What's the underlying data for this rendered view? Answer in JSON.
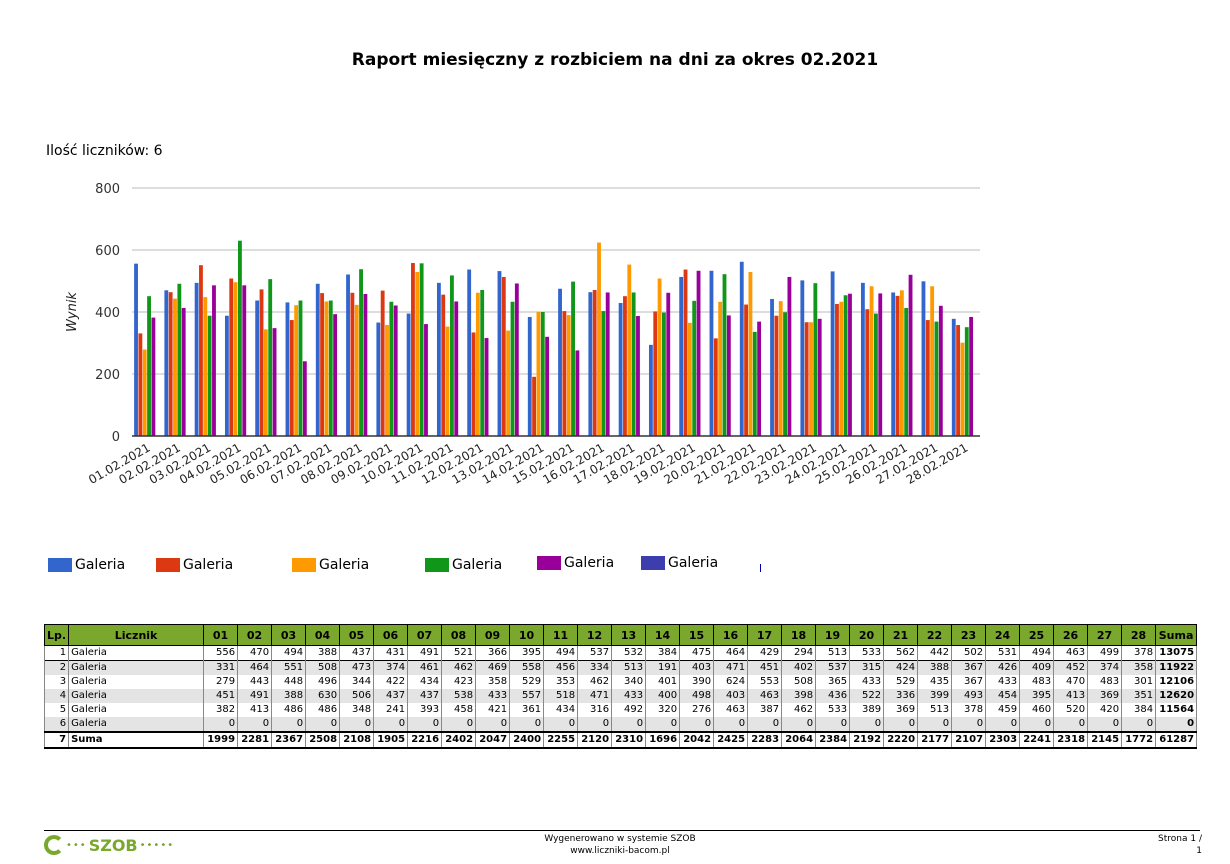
{
  "report": {
    "title": "Raport miesięczny z rozbiciem na dni za okres 02.2021",
    "counter_count": "Ilość liczników: 6"
  },
  "chart_data": {
    "type": "bar",
    "ylabel": "Wynik",
    "ylim": [
      0,
      800
    ],
    "yticks": [
      0,
      200,
      400,
      600,
      800
    ],
    "grid": true,
    "categories": [
      "01.02.2021",
      "02.02.2021",
      "03.02.2021",
      "04.02.2021",
      "05.02.2021",
      "06.02.2021",
      "07.02.2021",
      "08.02.2021",
      "09.02.2021",
      "10.02.2021",
      "11.02.2021",
      "12.02.2021",
      "13.02.2021",
      "14.02.2021",
      "15.02.2021",
      "16.02.2021",
      "17.02.2021",
      "18.02.2021",
      "19.02.2021",
      "20.02.2021",
      "21.02.2021",
      "22.02.2021",
      "23.02.2021",
      "24.02.2021",
      "25.02.2021",
      "26.02.2021",
      "27.02.2021",
      "28.02.2021"
    ],
    "series": [
      {
        "name": "Galeria",
        "color": "#3366cc",
        "values": [
          556,
          470,
          494,
          388,
          437,
          431,
          491,
          521,
          366,
          395,
          494,
          537,
          532,
          384,
          475,
          464,
          429,
          294,
          513,
          533,
          562,
          442,
          502,
          531,
          494,
          463,
          499,
          378
        ]
      },
      {
        "name": "Galeria",
        "color": "#dc3912",
        "values": [
          331,
          464,
          551,
          508,
          473,
          374,
          461,
          462,
          469,
          558,
          456,
          334,
          513,
          191,
          403,
          471,
          451,
          402,
          537,
          315,
          424,
          388,
          367,
          426,
          409,
          452,
          374,
          358
        ]
      },
      {
        "name": "Galeria",
        "color": "#ff9900",
        "values": [
          279,
          443,
          448,
          496,
          344,
          422,
          434,
          423,
          358,
          529,
          353,
          462,
          340,
          401,
          390,
          624,
          553,
          508,
          365,
          433,
          529,
          435,
          367,
          433,
          483,
          470,
          483,
          301
        ]
      },
      {
        "name": "Galeria",
        "color": "#109618",
        "values": [
          451,
          491,
          388,
          630,
          506,
          437,
          437,
          538,
          433,
          557,
          518,
          471,
          433,
          400,
          498,
          403,
          463,
          398,
          436,
          522,
          336,
          399,
          493,
          454,
          395,
          413,
          369,
          351
        ]
      },
      {
        "name": "Galeria",
        "color": "#990099",
        "values": [
          382,
          413,
          486,
          486,
          348,
          241,
          393,
          458,
          421,
          361,
          434,
          316,
          492,
          320,
          276,
          463,
          387,
          462,
          533,
          389,
          369,
          513,
          378,
          459,
          460,
          520,
          420,
          384
        ]
      },
      {
        "name": "Galeria",
        "color": "#3b3eac",
        "values": [
          0,
          0,
          0,
          0,
          0,
          0,
          0,
          0,
          0,
          0,
          0,
          0,
          0,
          0,
          0,
          0,
          0,
          0,
          0,
          0,
          0,
          0,
          0,
          0,
          0,
          0,
          0,
          0
        ]
      }
    ]
  },
  "table": {
    "headers": [
      "Lp.",
      "Licznik",
      "01",
      "02",
      "03",
      "04",
      "05",
      "06",
      "07",
      "08",
      "09",
      "10",
      "11",
      "12",
      "13",
      "14",
      "15",
      "16",
      "17",
      "18",
      "19",
      "20",
      "21",
      "22",
      "23",
      "24",
      "25",
      "26",
      "27",
      "28",
      "Suma"
    ],
    "rows": [
      [
        "1",
        "Galeria",
        "556",
        "470",
        "494",
        "388",
        "437",
        "431",
        "491",
        "521",
        "366",
        "395",
        "494",
        "537",
        "532",
        "384",
        "475",
        "464",
        "429",
        "294",
        "513",
        "533",
        "562",
        "442",
        "502",
        "531",
        "494",
        "463",
        "499",
        "378",
        "13075"
      ],
      [
        "2",
        "Galeria",
        "331",
        "464",
        "551",
        "508",
        "473",
        "374",
        "461",
        "462",
        "469",
        "558",
        "456",
        "334",
        "513",
        "191",
        "403",
        "471",
        "451",
        "402",
        "537",
        "315",
        "424",
        "388",
        "367",
        "426",
        "409",
        "452",
        "374",
        "358",
        "11922"
      ],
      [
        "3",
        "Galeria",
        "279",
        "443",
        "448",
        "496",
        "344",
        "422",
        "434",
        "423",
        "358",
        "529",
        "353",
        "462",
        "340",
        "401",
        "390",
        "624",
        "553",
        "508",
        "365",
        "433",
        "529",
        "435",
        "367",
        "433",
        "483",
        "470",
        "483",
        "301",
        "12106"
      ],
      [
        "4",
        "Galeria",
        "451",
        "491",
        "388",
        "630",
        "506",
        "437",
        "437",
        "538",
        "433",
        "557",
        "518",
        "471",
        "433",
        "400",
        "498",
        "403",
        "463",
        "398",
        "436",
        "522",
        "336",
        "399",
        "493",
        "454",
        "395",
        "413",
        "369",
        "351",
        "12620"
      ],
      [
        "5",
        "Galeria",
        "382",
        "413",
        "486",
        "486",
        "348",
        "241",
        "393",
        "458",
        "421",
        "361",
        "434",
        "316",
        "492",
        "320",
        "276",
        "463",
        "387",
        "462",
        "533",
        "389",
        "369",
        "513",
        "378",
        "459",
        "460",
        "520",
        "420",
        "384",
        "11564"
      ],
      [
        "6",
        "Galeria",
        "0",
        "0",
        "0",
        "0",
        "0",
        "0",
        "0",
        "0",
        "0",
        "0",
        "0",
        "0",
        "0",
        "0",
        "0",
        "0",
        "0",
        "0",
        "0",
        "0",
        "0",
        "0",
        "0",
        "0",
        "0",
        "0",
        "0",
        "0",
        "0"
      ]
    ],
    "sum_row": [
      "7",
      "Suma",
      "1999",
      "2281",
      "2367",
      "2508",
      "2108",
      "1905",
      "2216",
      "2402",
      "2047",
      "2400",
      "2255",
      "2120",
      "2310",
      "1696",
      "2042",
      "2425",
      "2283",
      "2064",
      "2384",
      "2192",
      "2220",
      "2177",
      "2107",
      "2303",
      "2241",
      "2318",
      "2145",
      "1772",
      "61287"
    ]
  },
  "footer": {
    "logo_text": "SZOB",
    "generated_line1": "Wygenerowano w systemie SZOB",
    "generated_line2": "www.liczniki-bacom.pl",
    "page_line1": "Strona 1 /",
    "page_line2": "1"
  }
}
